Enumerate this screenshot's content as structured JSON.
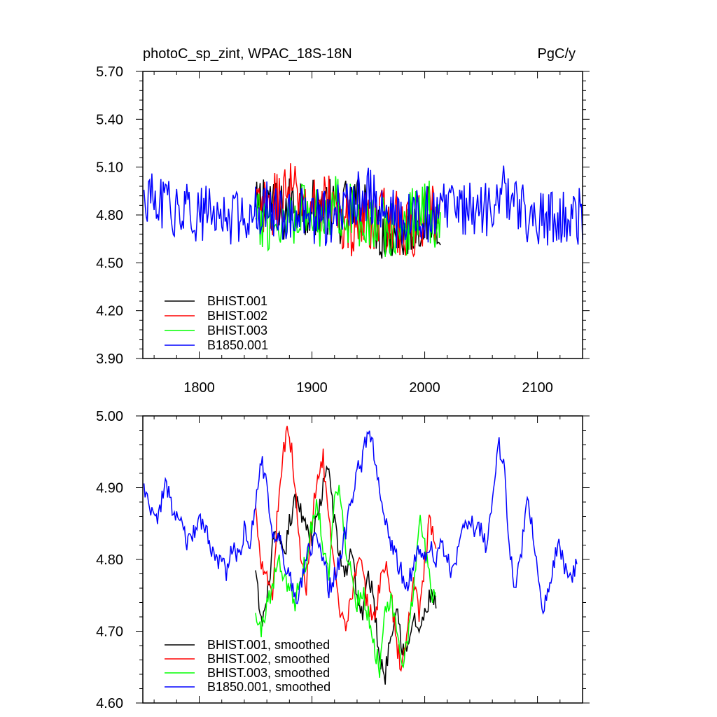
{
  "chart_data": [
    {
      "type": "line",
      "title_left": "photoC_sp_zint, WPAC_18S-18N",
      "title_right": "PgC/y",
      "xlim": [
        1750,
        2140
      ],
      "ylim": [
        3.9,
        5.7
      ],
      "x_ticks": [
        1800,
        1900,
        2000,
        2100
      ],
      "x_tick_labels": [
        "1800",
        "1900",
        "2000",
        "2100"
      ],
      "y_ticks": [
        3.9,
        4.2,
        4.5,
        4.8,
        5.1,
        5.4,
        5.7
      ],
      "y_tick_labels": [
        "3.90",
        "4.20",
        "4.50",
        "4.80",
        "5.10",
        "5.40",
        "5.70"
      ],
      "legend_position": "bottom-left",
      "series": [
        {
          "name": "BHIST.001",
          "color": "#000000",
          "x_start": 1850,
          "x_end": 2014,
          "anchors": [
            [
              1850,
              4.8
            ],
            [
              1860,
              4.95
            ],
            [
              1870,
              4.78
            ],
            [
              1880,
              4.85
            ],
            [
              1890,
              4.9
            ],
            [
              1900,
              4.82
            ],
            [
              1910,
              4.88
            ],
            [
              1920,
              4.8
            ],
            [
              1930,
              4.83
            ],
            [
              1940,
              4.85
            ],
            [
              1950,
              4.9
            ],
            [
              1960,
              4.7
            ],
            [
              1970,
              4.72
            ],
            [
              1980,
              4.68
            ],
            [
              1990,
              4.75
            ],
            [
              2000,
              4.78
            ],
            [
              2014,
              4.8
            ]
          ],
          "amplitude": 0.2
        },
        {
          "name": "BHIST.002",
          "color": "#ff0000",
          "x_start": 1850,
          "x_end": 2014,
          "anchors": [
            [
              1850,
              4.85
            ],
            [
              1860,
              4.8
            ],
            [
              1870,
              4.9
            ],
            [
              1880,
              4.95
            ],
            [
              1890,
              4.88
            ],
            [
              1900,
              4.85
            ],
            [
              1910,
              4.9
            ],
            [
              1920,
              4.85
            ],
            [
              1930,
              4.75
            ],
            [
              1940,
              4.72
            ],
            [
              1950,
              4.78
            ],
            [
              1960,
              4.76
            ],
            [
              1970,
              4.8
            ],
            [
              1980,
              4.7
            ],
            [
              1990,
              4.72
            ],
            [
              2000,
              4.8
            ],
            [
              2014,
              4.78
            ]
          ],
          "amplitude": 0.2
        },
        {
          "name": "BHIST.003",
          "color": "#00ff00",
          "x_start": 1850,
          "x_end": 2014,
          "anchors": [
            [
              1850,
              4.72
            ],
            [
              1860,
              4.78
            ],
            [
              1870,
              4.74
            ],
            [
              1880,
              4.8
            ],
            [
              1890,
              4.85
            ],
            [
              1900,
              4.78
            ],
            [
              1910,
              4.8
            ],
            [
              1920,
              4.9
            ],
            [
              1930,
              4.82
            ],
            [
              1940,
              4.8
            ],
            [
              1950,
              4.78
            ],
            [
              1960,
              4.72
            ],
            [
              1970,
              4.7
            ],
            [
              1980,
              4.68
            ],
            [
              1990,
              4.8
            ],
            [
              2000,
              4.85
            ],
            [
              2014,
              4.76
            ]
          ],
          "amplitude": 0.2
        },
        {
          "name": "B1850.001",
          "color": "#0000ff",
          "x_start": 1751,
          "x_end": 2140,
          "anchors": [
            [
              1751,
              4.9
            ],
            [
              1770,
              4.85
            ],
            [
              1790,
              4.82
            ],
            [
              1810,
              4.8
            ],
            [
              1830,
              4.78
            ],
            [
              1850,
              4.85
            ],
            [
              1870,
              4.82
            ],
            [
              1890,
              4.8
            ],
            [
              1910,
              4.78
            ],
            [
              1930,
              4.84
            ],
            [
              1950,
              4.95
            ],
            [
              1960,
              4.82
            ],
            [
              1980,
              4.75
            ],
            [
              2000,
              4.8
            ],
            [
              2020,
              4.82
            ],
            [
              2040,
              4.84
            ],
            [
              2060,
              4.85
            ],
            [
              2070,
              4.95
            ],
            [
              2090,
              4.8
            ],
            [
              2110,
              4.78
            ],
            [
              2130,
              4.77
            ],
            [
              2140,
              4.8
            ]
          ],
          "amplitude": 0.18
        }
      ]
    },
    {
      "type": "line",
      "xlim": [
        1750,
        2140
      ],
      "ylim": [
        4.6,
        5.0
      ],
      "x_ticks": [
        1800,
        1900,
        2000,
        2100
      ],
      "y_ticks": [
        4.6,
        4.7,
        4.8,
        4.9,
        5.0
      ],
      "y_tick_labels": [
        "4.60",
        "4.70",
        "4.80",
        "4.90",
        "5.00"
      ],
      "legend_position": "bottom-left",
      "series": [
        {
          "name": "BHIST.001, smoothed",
          "color": "#000000",
          "x_start": 1850,
          "x_end": 2010,
          "anchors": [
            [
              1850,
              4.78
            ],
            [
              1855,
              4.71
            ],
            [
              1860,
              4.74
            ],
            [
              1865,
              4.82
            ],
            [
              1870,
              4.83
            ],
            [
              1875,
              4.8
            ],
            [
              1880,
              4.85
            ],
            [
              1885,
              4.88
            ],
            [
              1890,
              4.87
            ],
            [
              1895,
              4.85
            ],
            [
              1900,
              4.83
            ],
            [
              1905,
              4.86
            ],
            [
              1910,
              4.9
            ],
            [
              1915,
              4.93
            ],
            [
              1920,
              4.85
            ],
            [
              1925,
              4.8
            ],
            [
              1930,
              4.78
            ],
            [
              1935,
              4.82
            ],
            [
              1940,
              4.75
            ],
            [
              1945,
              4.72
            ],
            [
              1950,
              4.78
            ],
            [
              1955,
              4.74
            ],
            [
              1960,
              4.66
            ],
            [
              1965,
              4.64
            ],
            [
              1970,
              4.7
            ],
            [
              1975,
              4.74
            ],
            [
              1980,
              4.68
            ],
            [
              1985,
              4.67
            ],
            [
              1990,
              4.72
            ],
            [
              1995,
              4.7
            ],
            [
              2000,
              4.72
            ],
            [
              2005,
              4.75
            ],
            [
              2010,
              4.74
            ]
          ],
          "amplitude": 0.0
        },
        {
          "name": "BHIST.002, smoothed",
          "color": "#ff0000",
          "x_start": 1850,
          "x_end": 2010,
          "anchors": [
            [
              1850,
              4.87
            ],
            [
              1855,
              4.8
            ],
            [
              1860,
              4.78
            ],
            [
              1865,
              4.75
            ],
            [
              1870,
              4.88
            ],
            [
              1875,
              4.96
            ],
            [
              1880,
              4.98
            ],
            [
              1885,
              4.9
            ],
            [
              1890,
              4.8
            ],
            [
              1895,
              4.76
            ],
            [
              1900,
              4.86
            ],
            [
              1905,
              4.92
            ],
            [
              1910,
              4.94
            ],
            [
              1915,
              4.85
            ],
            [
              1920,
              4.78
            ],
            [
              1925,
              4.72
            ],
            [
              1930,
              4.7
            ],
            [
              1935,
              4.75
            ],
            [
              1940,
              4.8
            ],
            [
              1945,
              4.78
            ],
            [
              1950,
              4.73
            ],
            [
              1955,
              4.72
            ],
            [
              1960,
              4.76
            ],
            [
              1965,
              4.8
            ],
            [
              1970,
              4.75
            ],
            [
              1975,
              4.68
            ],
            [
              1980,
              4.65
            ],
            [
              1985,
              4.7
            ],
            [
              1990,
              4.78
            ],
            [
              1995,
              4.72
            ],
            [
              2000,
              4.8
            ],
            [
              2005,
              4.86
            ],
            [
              2010,
              4.8
            ]
          ],
          "amplitude": 0.0
        },
        {
          "name": "BHIST.003, smoothed",
          "color": "#00ff00",
          "x_start": 1850,
          "x_end": 2010,
          "anchors": [
            [
              1850,
              4.72
            ],
            [
              1855,
              4.7
            ],
            [
              1860,
              4.74
            ],
            [
              1865,
              4.76
            ],
            [
              1870,
              4.8
            ],
            [
              1875,
              4.78
            ],
            [
              1880,
              4.76
            ],
            [
              1885,
              4.74
            ],
            [
              1890,
              4.78
            ],
            [
              1895,
              4.8
            ],
            [
              1900,
              4.85
            ],
            [
              1905,
              4.88
            ],
            [
              1910,
              4.82
            ],
            [
              1915,
              4.78
            ],
            [
              1920,
              4.88
            ],
            [
              1925,
              4.9
            ],
            [
              1930,
              4.82
            ],
            [
              1935,
              4.78
            ],
            [
              1940,
              4.74
            ],
            [
              1945,
              4.76
            ],
            [
              1950,
              4.72
            ],
            [
              1955,
              4.68
            ],
            [
              1960,
              4.65
            ],
            [
              1965,
              4.72
            ],
            [
              1970,
              4.74
            ],
            [
              1975,
              4.7
            ],
            [
              1980,
              4.66
            ],
            [
              1985,
              4.68
            ],
            [
              1990,
              4.76
            ],
            [
              1995,
              4.86
            ],
            [
              2000,
              4.82
            ],
            [
              2005,
              4.76
            ],
            [
              2010,
              4.74
            ]
          ],
          "amplitude": 0.0
        },
        {
          "name": "B1850.001, smoothed",
          "color": "#0000ff",
          "x_start": 1751,
          "x_end": 2135,
          "anchors": [
            [
              1751,
              4.9
            ],
            [
              1755,
              4.88
            ],
            [
              1760,
              4.85
            ],
            [
              1765,
              4.87
            ],
            [
              1770,
              4.9
            ],
            [
              1775,
              4.88
            ],
            [
              1780,
              4.86
            ],
            [
              1785,
              4.84
            ],
            [
              1790,
              4.82
            ],
            [
              1795,
              4.84
            ],
            [
              1800,
              4.85
            ],
            [
              1805,
              4.84
            ],
            [
              1810,
              4.82
            ],
            [
              1815,
              4.8
            ],
            [
              1820,
              4.8
            ],
            [
              1825,
              4.78
            ],
            [
              1830,
              4.82
            ],
            [
              1835,
              4.8
            ],
            [
              1840,
              4.84
            ],
            [
              1845,
              4.82
            ],
            [
              1850,
              4.88
            ],
            [
              1855,
              4.94
            ],
            [
              1860,
              4.9
            ],
            [
              1865,
              4.82
            ],
            [
              1870,
              4.84
            ],
            [
              1875,
              4.8
            ],
            [
              1880,
              4.78
            ],
            [
              1885,
              4.74
            ],
            [
              1890,
              4.76
            ],
            [
              1895,
              4.8
            ],
            [
              1900,
              4.82
            ],
            [
              1905,
              4.84
            ],
            [
              1910,
              4.8
            ],
            [
              1915,
              4.76
            ],
            [
              1920,
              4.78
            ],
            [
              1925,
              4.8
            ],
            [
              1930,
              4.84
            ],
            [
              1935,
              4.88
            ],
            [
              1940,
              4.92
            ],
            [
              1945,
              4.94
            ],
            [
              1950,
              4.99
            ],
            [
              1955,
              4.95
            ],
            [
              1960,
              4.9
            ],
            [
              1965,
              4.86
            ],
            [
              1970,
              4.82
            ],
            [
              1975,
              4.8
            ],
            [
              1980,
              4.78
            ],
            [
              1985,
              4.76
            ],
            [
              1990,
              4.8
            ],
            [
              1995,
              4.82
            ],
            [
              2000,
              4.8
            ],
            [
              2005,
              4.82
            ],
            [
              2010,
              4.8
            ],
            [
              2015,
              4.83
            ],
            [
              2020,
              4.8
            ],
            [
              2025,
              4.78
            ],
            [
              2030,
              4.82
            ],
            [
              2035,
              4.84
            ],
            [
              2040,
              4.86
            ],
            [
              2045,
              4.84
            ],
            [
              2050,
              4.84
            ],
            [
              2055,
              4.82
            ],
            [
              2060,
              4.88
            ],
            [
              2065,
              4.96
            ],
            [
              2070,
              4.94
            ],
            [
              2075,
              4.82
            ],
            [
              2080,
              4.76
            ],
            [
              2085,
              4.8
            ],
            [
              2090,
              4.88
            ],
            [
              2095,
              4.86
            ],
            [
              2100,
              4.78
            ],
            [
              2105,
              4.72
            ],
            [
              2110,
              4.76
            ],
            [
              2115,
              4.8
            ],
            [
              2120,
              4.82
            ],
            [
              2125,
              4.78
            ],
            [
              2130,
              4.78
            ],
            [
              2135,
              4.79
            ]
          ],
          "amplitude": 0.0
        }
      ]
    }
  ]
}
